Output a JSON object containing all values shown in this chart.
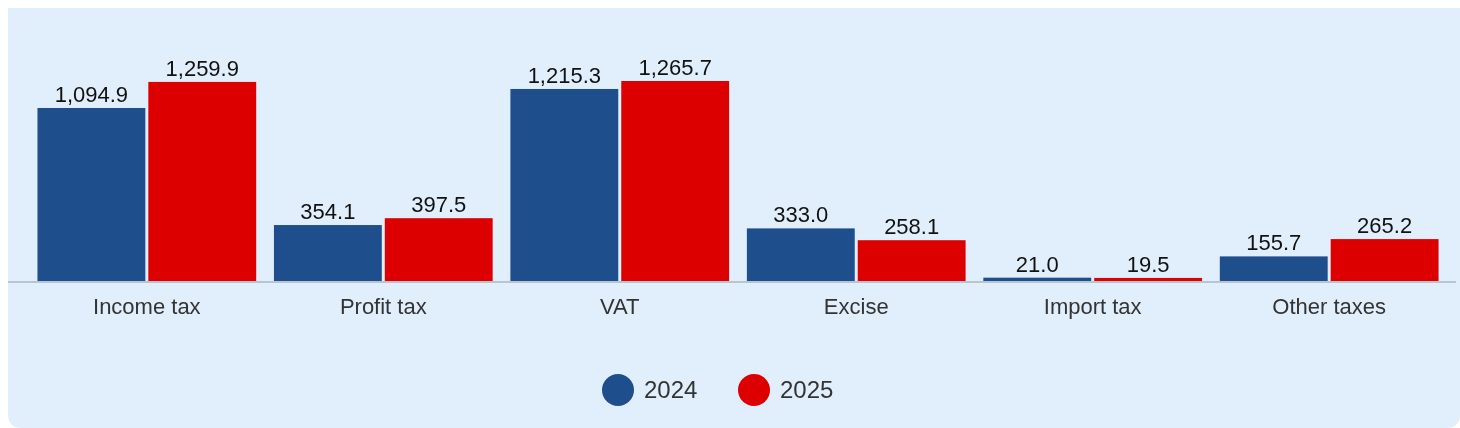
{
  "chart_data": {
    "type": "bar",
    "categories": [
      "Income tax",
      "Profit tax",
      "VAT",
      "Excise",
      "Import tax",
      "Other taxes"
    ],
    "series": [
      {
        "name": "2024",
        "color": "#1f4e8c",
        "values": [
          1094.9,
          354.1,
          1215.3,
          333.0,
          21.0,
          155.7
        ],
        "value_labels": [
          "1,094.9",
          "354.1",
          "1,215.3",
          "333.0",
          "21.0",
          "155.7"
        ]
      },
      {
        "name": "2025",
        "color": "#dd0000",
        "values": [
          1259.9,
          397.5,
          1265.7,
          258.1,
          19.5,
          265.2
        ],
        "value_labels": [
          "1,259.9",
          "397.5",
          "1,265.7",
          "258.1",
          "19.5",
          "265.2"
        ]
      }
    ],
    "legend": "bottom"
  }
}
